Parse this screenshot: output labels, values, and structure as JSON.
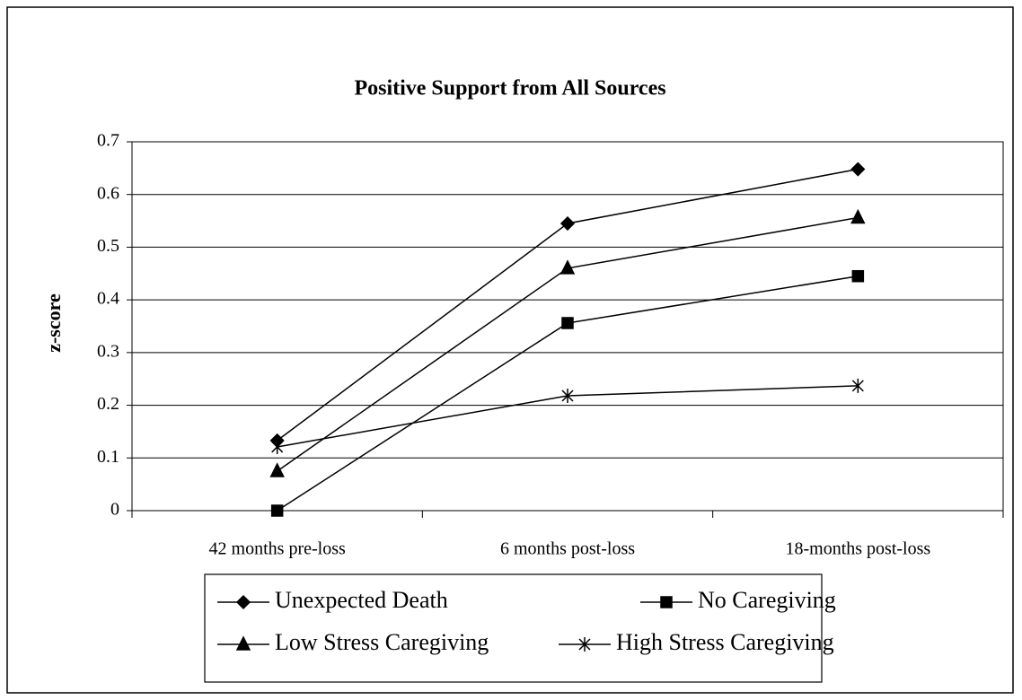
{
  "chart_data": {
    "type": "line",
    "title": "Positive Support from All Sources",
    "y_label": "z-score",
    "categories": [
      "42 months pre-loss",
      "6 months post-loss",
      "18-months post-loss"
    ],
    "series": [
      {
        "name": "Unexpected Death",
        "color": "#000000",
        "marker": "diamond",
        "values": [
          0.133,
          0.545,
          0.648
        ]
      },
      {
        "name": "No Caregiving",
        "color": "#000000",
        "marker": "square",
        "values": [
          0,
          0.356,
          0.445
        ]
      },
      {
        "name": "Low Stress Caregiving",
        "color": "#000000",
        "marker": "triangle",
        "values": [
          0.075,
          0.46,
          0.556
        ]
      },
      {
        "name": "High Stress Caregiving",
        "color": "#000000",
        "marker": "asterisk",
        "values": [
          0.121,
          0.218,
          0.237
        ]
      }
    ],
    "ylim": [
      0,
      0.7
    ],
    "yticks": [
      0,
      0.1,
      0.2,
      0.3,
      0.4,
      0.5,
      0.6,
      0.7
    ],
    "grid": true,
    "legend": "bottom"
  }
}
